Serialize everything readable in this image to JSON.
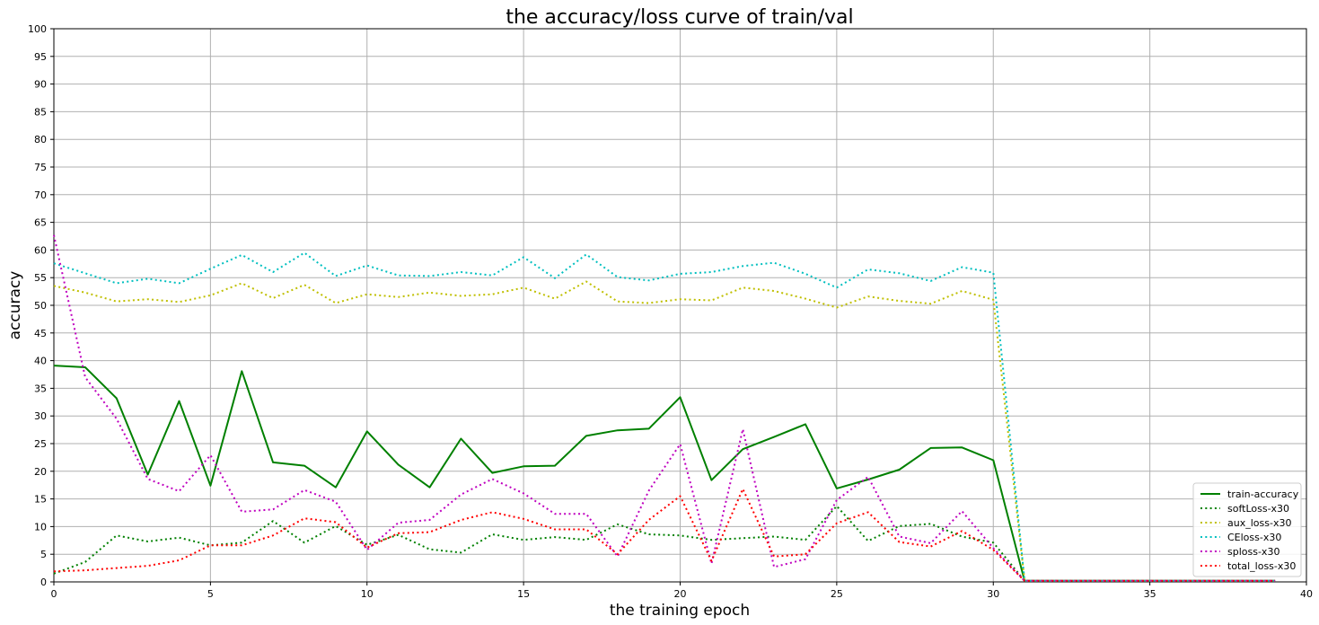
{
  "chart_data": {
    "type": "line",
    "title": "the accuracy/loss curve of train/val",
    "xlabel": "the training epoch",
    "ylabel": "accuracy",
    "xlim": [
      0,
      40
    ],
    "ylim": [
      0,
      100
    ],
    "xticks": [
      0,
      5,
      10,
      15,
      20,
      25,
      30,
      35,
      40
    ],
    "yticks": [
      0,
      5,
      10,
      15,
      20,
      25,
      30,
      35,
      40,
      45,
      50,
      55,
      60,
      65,
      70,
      75,
      80,
      85,
      90,
      95,
      100
    ],
    "grid": true,
    "legend_position": "lower-right",
    "x": [
      0,
      1,
      2,
      3,
      4,
      5,
      6,
      7,
      8,
      9,
      10,
      11,
      12,
      13,
      14,
      15,
      16,
      17,
      18,
      19,
      20,
      21,
      22,
      23,
      24,
      25,
      26,
      27,
      28,
      29,
      30,
      31,
      32,
      33,
      34,
      35,
      36,
      37,
      38,
      39
    ],
    "series": [
      {
        "name": "train-accuracy",
        "color": "#008000",
        "style": "solid",
        "values": [
          39.1,
          38.8,
          33.2,
          19.4,
          32.7,
          17.4,
          38.1,
          21.6,
          21.0,
          17.1,
          27.2,
          21.2,
          17.1,
          25.9,
          19.7,
          20.9,
          21.0,
          26.4,
          27.4,
          27.7,
          33.4,
          18.4,
          24.0,
          26.2,
          28.5,
          16.9,
          18.5,
          20.3,
          24.2,
          24.3,
          22.0,
          0.2,
          0.2,
          0.2,
          0.2,
          0.2,
          0.2,
          0.2,
          0.2,
          0.2
        ]
      },
      {
        "name": "softLoss-x30",
        "color": "#008000",
        "style": "dotted",
        "values": [
          1.5,
          3.6,
          8.4,
          7.3,
          8.0,
          6.6,
          7.1,
          11.0,
          7.1,
          10.1,
          6.7,
          8.5,
          5.9,
          5.3,
          8.6,
          7.6,
          8.1,
          7.6,
          10.4,
          8.6,
          8.4,
          7.6,
          7.9,
          8.2,
          7.6,
          13.7,
          7.4,
          10.1,
          10.5,
          8.2,
          7.1,
          0.2,
          0.2,
          0.2,
          0.2,
          0.2,
          0.2,
          0.2,
          0.2,
          0.2
        ]
      },
      {
        "name": "aux_loss-x30",
        "color": "#bfbf00",
        "style": "dotted",
        "values": [
          53.5,
          52.3,
          50.7,
          51.1,
          50.6,
          51.8,
          54.0,
          51.3,
          53.7,
          50.4,
          52.0,
          51.5,
          52.3,
          51.7,
          52.0,
          53.2,
          51.2,
          54.3,
          50.7,
          50.4,
          51.1,
          50.9,
          53.2,
          52.6,
          51.2,
          49.6,
          51.6,
          50.8,
          50.3,
          52.6,
          51.0,
          0.2,
          0.2,
          0.2,
          0.2,
          0.2,
          0.2,
          0.2,
          0.2,
          0.2
        ]
      },
      {
        "name": "CEloss-x30",
        "color": "#00bfbf",
        "style": "dotted",
        "values": [
          57.6,
          55.8,
          54.0,
          54.8,
          54.0,
          56.6,
          59.1,
          56.0,
          59.5,
          55.3,
          57.2,
          55.4,
          55.3,
          56.0,
          55.4,
          58.7,
          54.9,
          59.2,
          55.1,
          54.5,
          55.7,
          56.0,
          57.1,
          57.7,
          55.7,
          53.2,
          56.5,
          55.8,
          54.4,
          56.9,
          55.9,
          0.2,
          0.2,
          0.2,
          0.2,
          0.2,
          0.2,
          0.2,
          0.2,
          0.2
        ]
      },
      {
        "name": "sploss-x30",
        "color": "#bf00bf",
        "style": "dotted",
        "values": [
          62.7,
          37.0,
          29.5,
          18.6,
          16.4,
          22.9,
          12.7,
          13.1,
          16.6,
          14.5,
          5.8,
          10.7,
          11.2,
          15.8,
          18.6,
          16.0,
          12.3,
          12.3,
          4.6,
          16.5,
          24.9,
          3.3,
          27.6,
          2.7,
          4.1,
          14.8,
          19.0,
          8.2,
          7.0,
          12.8,
          6.1,
          0.2,
          0.2,
          0.2,
          0.2,
          0.2,
          0.2,
          0.2,
          0.2,
          0.2
        ]
      },
      {
        "name": "total_loss-x30",
        "color": "#ff0000",
        "style": "dotted",
        "values": [
          1.9,
          2.1,
          2.5,
          2.9,
          3.9,
          6.6,
          6.6,
          8.4,
          11.5,
          10.8,
          6.2,
          8.8,
          9.0,
          11.2,
          12.6,
          11.4,
          9.5,
          9.5,
          5.0,
          11.2,
          15.5,
          3.8,
          16.8,
          4.6,
          5.0,
          10.6,
          12.6,
          7.2,
          6.4,
          9.2,
          5.8,
          0.2,
          0.2,
          0.2,
          0.2,
          0.2,
          0.2,
          0.2,
          0.2,
          0.2
        ]
      }
    ]
  }
}
